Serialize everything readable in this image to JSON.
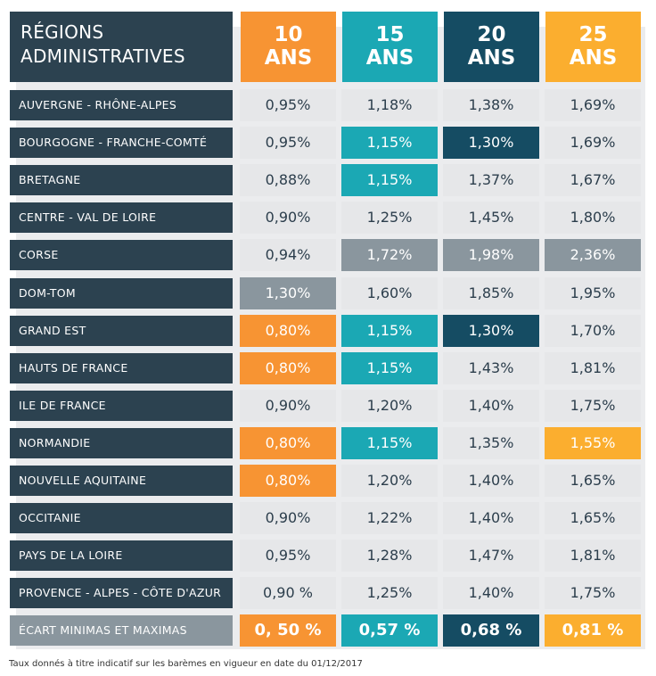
{
  "colors": {
    "dark": "#2c4250",
    "orange": "#f79433",
    "teal": "#1ba8b4",
    "navy": "#154c63",
    "amber": "#fbae2f",
    "gray": "#8a969e",
    "cell": "#e6e7e9",
    "text": "#2c3e4c"
  },
  "header": {
    "title_line1": "RÉGIONS",
    "title_line2": "ADMINISTRATIVES",
    "columns": [
      {
        "num": "10",
        "unit": "ANS",
        "color": "orange"
      },
      {
        "num": "15",
        "unit": "ANS",
        "color": "teal"
      },
      {
        "num": "20",
        "unit": "ANS",
        "color": "navy"
      },
      {
        "num": "25",
        "unit": "ANS",
        "color": "amber"
      }
    ]
  },
  "chart_data": {
    "type": "table",
    "title": "Régions administratives",
    "columns": [
      "10 ans",
      "15 ans",
      "20 ans",
      "25 ans"
    ],
    "rows": [
      {
        "region": "AUVERGNE - RHÔNE-ALPES",
        "values": [
          "0,95%",
          "1,18%",
          "1,38%",
          "1,69%"
        ],
        "highlight": [
          null,
          null,
          null,
          null
        ]
      },
      {
        "region": "BOURGOGNE - FRANCHE-COMTÉ",
        "values": [
          "0,95%",
          "1,15%",
          "1,30%",
          "1,69%"
        ],
        "highlight": [
          null,
          "teal",
          "navy",
          null
        ]
      },
      {
        "region": "BRETAGNE",
        "values": [
          "0,88%",
          "1,15%",
          "1,37%",
          "1,67%"
        ],
        "highlight": [
          null,
          "teal",
          null,
          null
        ]
      },
      {
        "region": "CENTRE - VAL DE LOIRE",
        "values": [
          "0,90%",
          "1,25%",
          "1,45%",
          "1,80%"
        ],
        "highlight": [
          null,
          null,
          null,
          null
        ]
      },
      {
        "region": "CORSE",
        "values": [
          "0,94%",
          "1,72%",
          "1,98%",
          "2,36%"
        ],
        "highlight": [
          null,
          "gray",
          "gray",
          "gray"
        ]
      },
      {
        "region": "DOM-TOM",
        "values": [
          "1,30%",
          "1,60%",
          "1,85%",
          "1,95%"
        ],
        "highlight": [
          "gray",
          null,
          null,
          null
        ]
      },
      {
        "region": "GRAND EST",
        "values": [
          "0,80%",
          "1,15%",
          "1,30%",
          "1,70%"
        ],
        "highlight": [
          "orange",
          "teal",
          "navy",
          null
        ]
      },
      {
        "region": "HAUTS DE FRANCE",
        "values": [
          "0,80%",
          "1,15%",
          "1,43%",
          "1,81%"
        ],
        "highlight": [
          "orange",
          "teal",
          null,
          null
        ]
      },
      {
        "region": "ILE DE FRANCE",
        "values": [
          "0,90%",
          "1,20%",
          "1,40%",
          "1,75%"
        ],
        "highlight": [
          null,
          null,
          null,
          null
        ]
      },
      {
        "region": "NORMANDIE",
        "values": [
          "0,80%",
          "1,15%",
          "1,35%",
          "1,55%"
        ],
        "highlight": [
          "orange",
          "teal",
          null,
          "amber"
        ]
      },
      {
        "region": "NOUVELLE  AQUITAINE",
        "values": [
          "0,80%",
          "1,20%",
          "1,40%",
          "1,65%"
        ],
        "highlight": [
          "orange",
          null,
          null,
          null
        ]
      },
      {
        "region": "OCCITANIE",
        "values": [
          "0,90%",
          "1,22%",
          "1,40%",
          "1,65%"
        ],
        "highlight": [
          null,
          null,
          null,
          null
        ]
      },
      {
        "region": "PAYS DE LA LOIRE",
        "values": [
          "0,95%",
          "1,28%",
          "1,47%",
          "1,81%"
        ],
        "highlight": [
          null,
          null,
          null,
          null
        ]
      },
      {
        "region": "PROVENCE - ALPES - CÔTE D'AZUR",
        "values": [
          "0,90 %",
          "1,25%",
          "1,40%",
          "1,75%"
        ],
        "highlight": [
          null,
          null,
          null,
          null
        ]
      }
    ],
    "footer_row": {
      "label": "ÉCART MINIMAS ET MAXIMAS",
      "values": [
        "0, 50 %",
        "0,57 %",
        "0,68 %",
        "0,81 %"
      ],
      "colors": [
        "orange",
        "teal",
        "navy",
        "amber"
      ]
    }
  },
  "footnote": "Taux donnés à titre indicatif sur les barèmes en vigueur en date du 01/12/2017"
}
